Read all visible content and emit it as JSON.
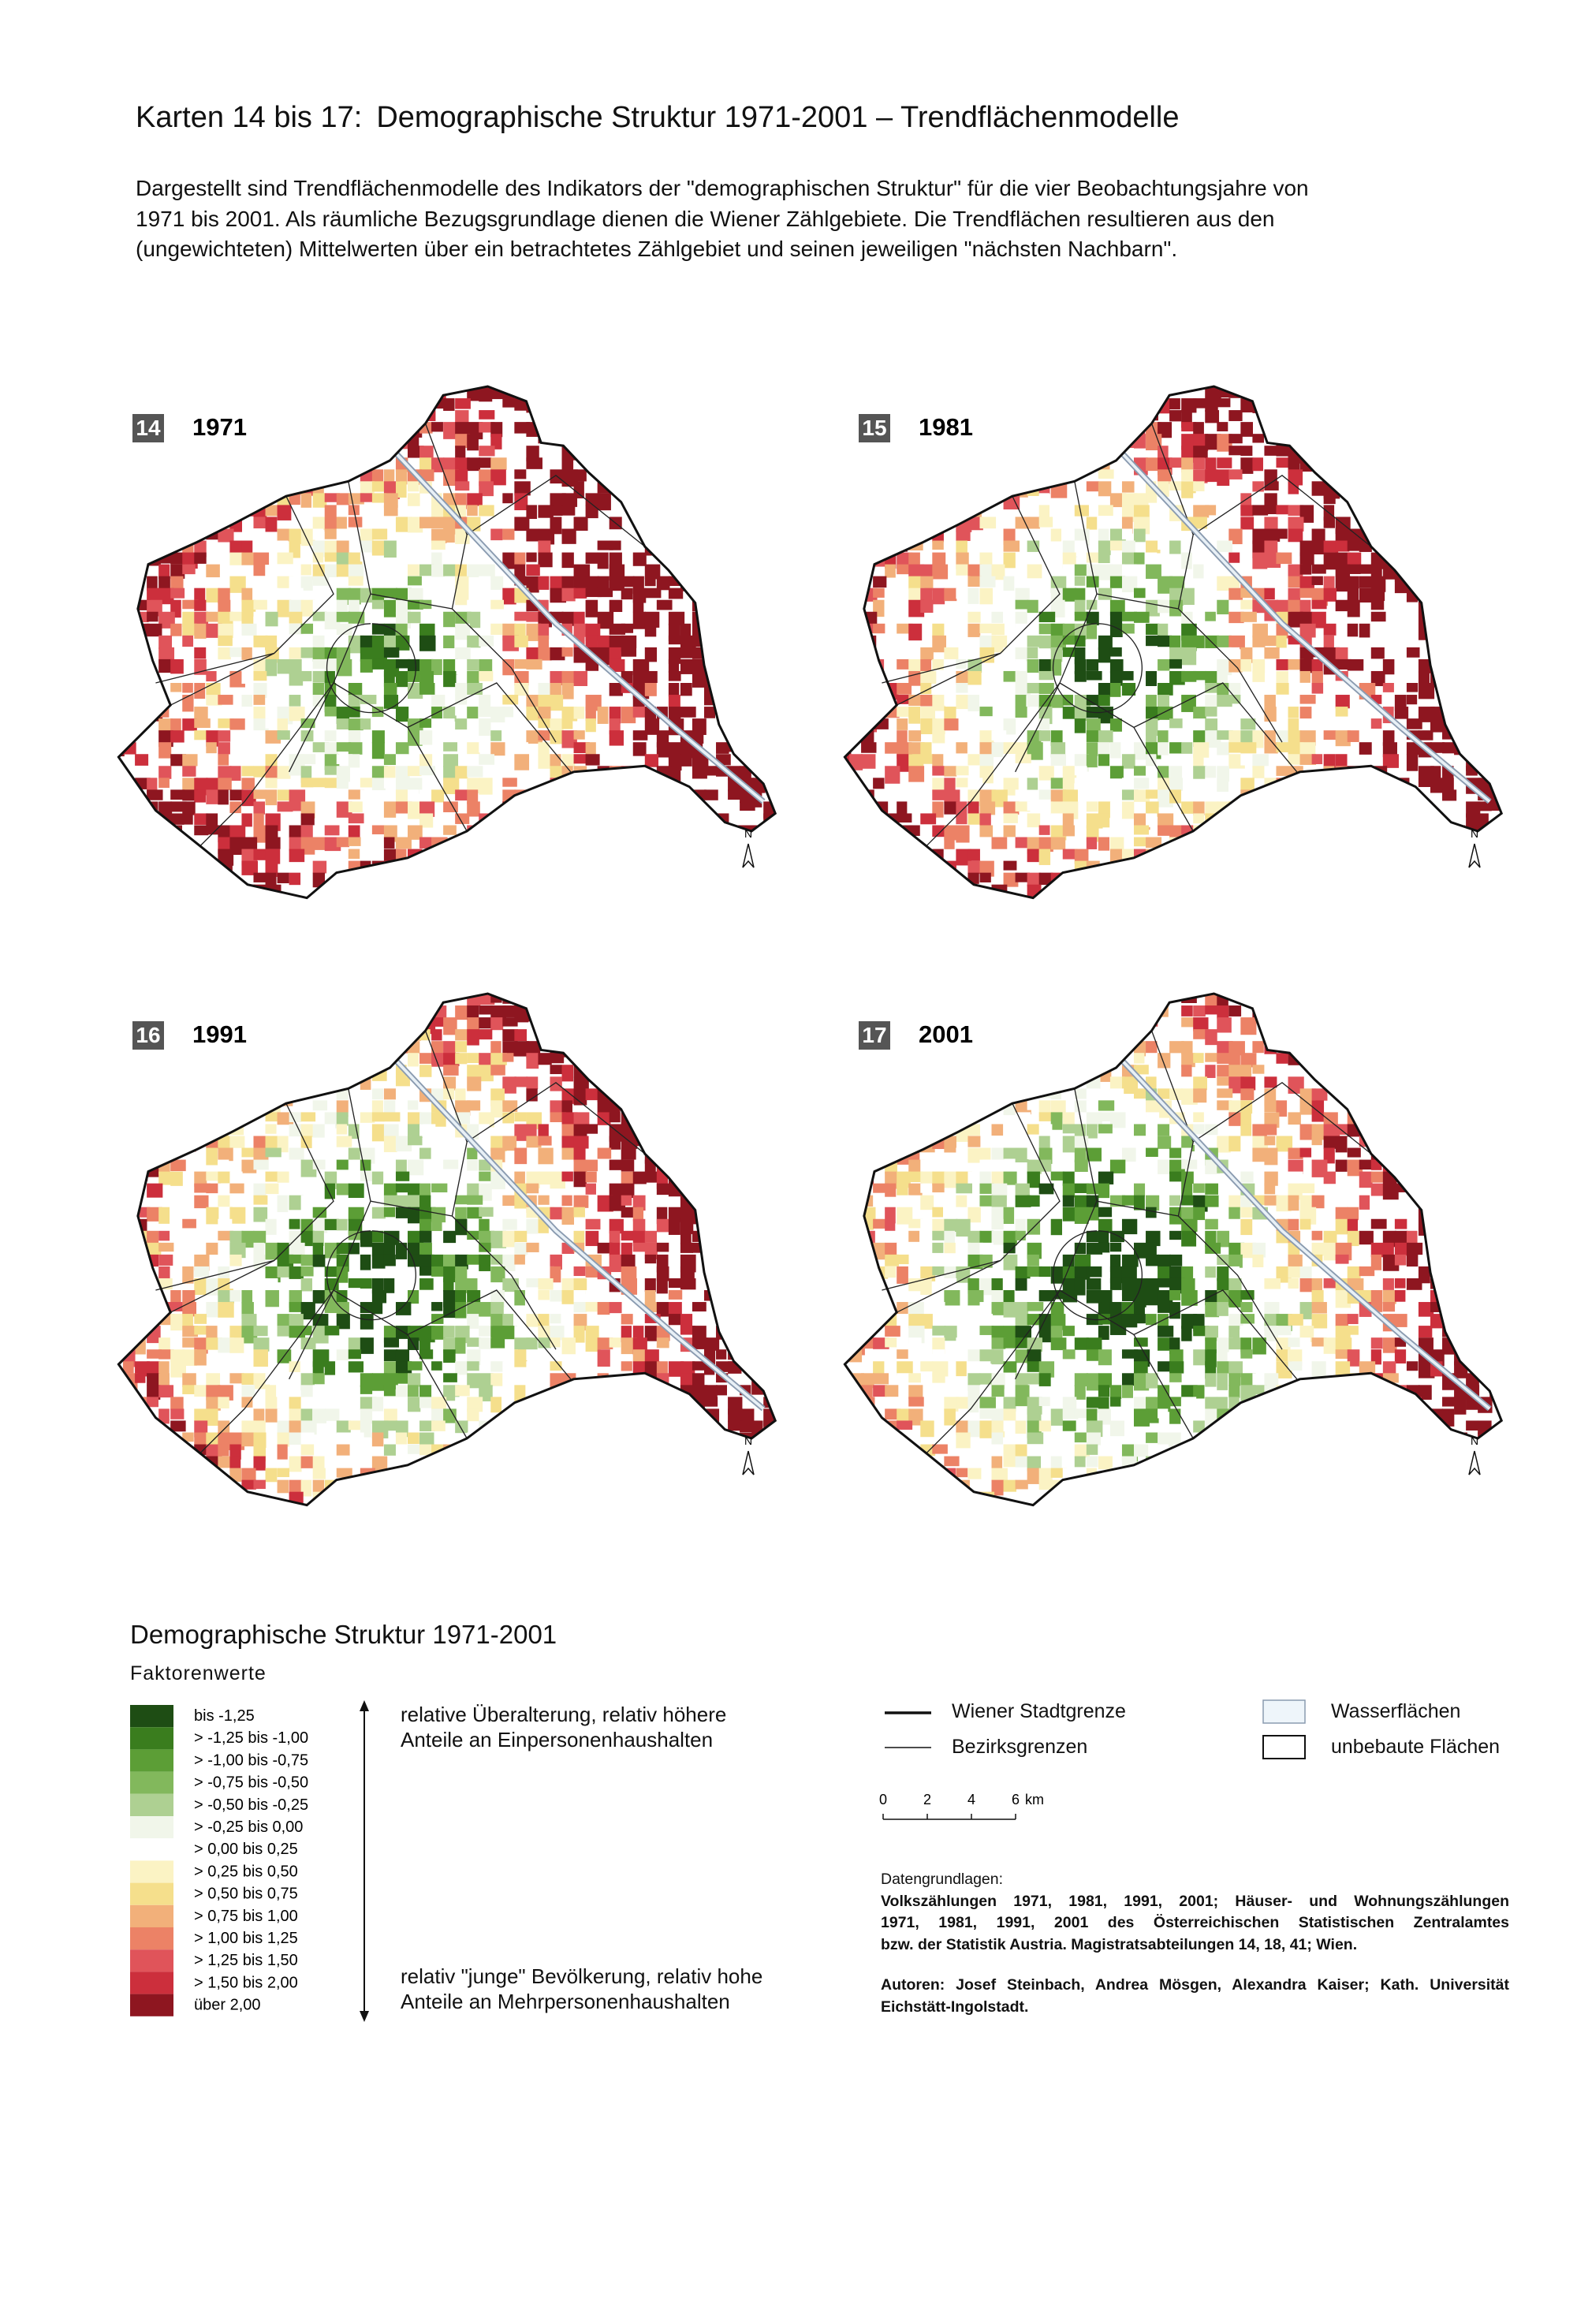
{
  "header": {
    "title_prefix": "Karten 14 bis 17:",
    "title": "Demographische Struktur 1971-2001 – Trendflächenmodelle",
    "description": [
      "Dargestellt sind Trendflächenmodelle des Indikators der \"demographischen Struktur\" für die vier Beobachtungsjahre von",
      "1971 bis 2001. Als räumliche Bezugsgrundlage dienen die Wiener Zählgebiete. Die Trendflächen resultieren aus den",
      "(ungewichteten) Mittelwerten über ein betrachtetes Zählgebiet und seinen jeweiligen \"nächsten Nachbarn\"."
    ]
  },
  "maps": [
    {
      "number": "14",
      "year": "1971"
    },
    {
      "number": "15",
      "year": "1981"
    },
    {
      "number": "16",
      "year": "1991"
    },
    {
      "number": "17",
      "year": "2001"
    }
  ],
  "north_label": "N",
  "legend": {
    "title": "Demographische Struktur 1971-2001",
    "subtitle": "Faktorenwerte",
    "classes": [
      {
        "label": "bis -1,25",
        "color": "#1e4d14"
      },
      {
        "label": "> -1,25 bis -1,00",
        "color": "#3a7d1e"
      },
      {
        "label": "> -1,00 bis -0,75",
        "color": "#5c9e36"
      },
      {
        "label": "> -0,75 bis -0,50",
        "color": "#82b85c"
      },
      {
        "label": "> -0,50 bis -0,25",
        "color": "#aed092"
      },
      {
        "label": "> -0,25 bis 0,00",
        "color": "#f1f6ea"
      },
      {
        "label": "> 0,00 bis 0,25",
        "color": "#ffffff"
      },
      {
        "label": "> 0,25 bis 0,50",
        "color": "#fbf3c4"
      },
      {
        "label": "> 0,50 bis 0,75",
        "color": "#f5df8c"
      },
      {
        "label": "> 0,75 bis 1,00",
        "color": "#f2b07a"
      },
      {
        "label": "> 1,00 bis 1,25",
        "color": "#ec8266"
      },
      {
        "label": "> 1,25 bis 1,50",
        "color": "#e0545a"
      },
      {
        "label": "> 1,50 bis 2,00",
        "color": "#cc2f3c"
      },
      {
        "label": "über 2,00",
        "color": "#8e1620"
      }
    ],
    "top_text": [
      "relative Überalterung, relativ höhere",
      "Anteile an Einpersonenhaushalten"
    ],
    "bottom_text": [
      "relativ \"junge\" Bevölkerung, relativ hohe",
      "Anteile an Mehrpersonenhaushalten"
    ]
  },
  "lines_legend": {
    "city_border": "Wiener Stadtgrenze",
    "district_border": "Bezirksgrenzen"
  },
  "areas_legend": {
    "water": "Wasserflächen",
    "unbuilt": "unbebaute Flächen"
  },
  "scale": {
    "ticks": [
      0,
      2,
      4,
      6
    ],
    "unit": "km"
  },
  "sources": {
    "heading": "Datengrundlagen:",
    "lines": [
      "Volkszählungen 1971, 1981, 1991, 2001; Häuser- und Wohnungszählungen",
      "1971, 1981, 1991, 2001 des Österreichischen Statistischen Zentralamtes",
      "bzw. der Statistik Austria. Magistratsabteilungen 14, 18, 41; Wien."
    ]
  },
  "authors": [
    "Autoren: Josef Steinbach, Andrea Mösgen, Alexandra Kaiser; Kath. Universität",
    "Eichstätt-Ingolstadt."
  ]
}
